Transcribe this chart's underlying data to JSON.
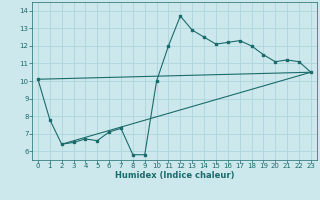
{
  "xlabel": "Humidex (Indice chaleur)",
  "ylabel": "",
  "xlim": [
    -0.5,
    23.5
  ],
  "ylim": [
    5.5,
    14.5
  ],
  "xticks": [
    0,
    1,
    2,
    3,
    4,
    5,
    6,
    7,
    8,
    9,
    10,
    11,
    12,
    13,
    14,
    15,
    16,
    17,
    18,
    19,
    20,
    21,
    22,
    23
  ],
  "yticks": [
    6,
    7,
    8,
    9,
    10,
    11,
    12,
    13,
    14
  ],
  "bg_color": "#cde8ec",
  "grid_color": "#b0d8de",
  "line_color": "#1a6b6b",
  "line1_x": [
    0,
    1,
    2,
    3,
    4,
    5,
    6,
    7,
    8,
    9,
    10,
    11,
    12,
    13,
    14,
    15,
    16,
    17,
    18,
    19,
    20,
    21,
    22,
    23
  ],
  "line1_y": [
    10.1,
    7.8,
    6.4,
    6.5,
    6.7,
    6.6,
    7.1,
    7.3,
    5.8,
    5.8,
    10.0,
    12.0,
    13.7,
    12.9,
    12.5,
    12.1,
    12.2,
    12.3,
    12.0,
    11.5,
    11.1,
    11.2,
    11.1,
    10.5
  ],
  "line2_x": [
    0,
    23
  ],
  "line2_y": [
    10.1,
    10.5
  ],
  "line3_x": [
    2,
    23
  ],
  "line3_y": [
    6.4,
    10.5
  ],
  "xlabel_fontsize": 6,
  "tick_fontsize": 5
}
